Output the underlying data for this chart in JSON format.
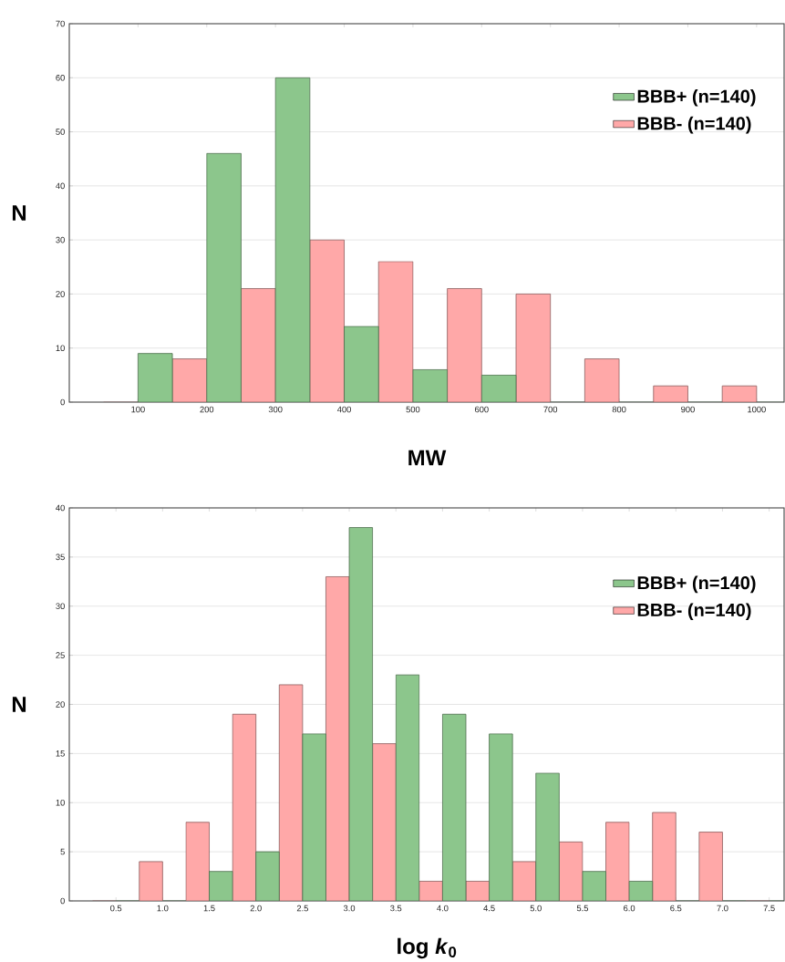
{
  "chart_data": [
    {
      "type": "bar",
      "xlabel": "MW",
      "ylabel": "N",
      "x": [
        100,
        200,
        300,
        400,
        500,
        600,
        700,
        800,
        900,
        1000
      ],
      "series": [
        {
          "name": "BBB-  (n=140)",
          "color": "#ffa8a8",
          "values": [
            0,
            8,
            21,
            30,
            26,
            21,
            20,
            8,
            3,
            3
          ]
        },
        {
          "name": "BBB+  (n=140)",
          "color": "#8cc68c",
          "values": [
            9,
            46,
            60,
            14,
            6,
            5,
            0,
            0,
            0,
            0
          ]
        }
      ],
      "xlim": [
        0,
        1040
      ],
      "ylim": [
        0,
        70
      ],
      "xticks": [
        100,
        200,
        300,
        400,
        500,
        600,
        700,
        800,
        900,
        1000
      ],
      "yticks": [
        0,
        10,
        20,
        30,
        40,
        50,
        60,
        70
      ],
      "grid": "y",
      "legend": "top right"
    },
    {
      "type": "bar",
      "xlabel": "log *k*$_{0}$",
      "ylabel": "N",
      "x": [
        0.5,
        1.0,
        1.5,
        2.0,
        2.5,
        3.0,
        3.5,
        4.0,
        4.5,
        5.0,
        5.5,
        6.0,
        6.5,
        7.0,
        7.5
      ],
      "series": [
        {
          "name": "BBB-  (n=140)",
          "color": "#ffa8a8",
          "values": [
            0,
            4,
            8,
            19,
            22,
            33,
            16,
            2,
            2,
            4,
            6,
            8,
            9,
            7,
            0
          ]
        },
        {
          "name": "BBB+  (n=140)",
          "color": "#8cc68c",
          "values": [
            0,
            0,
            3,
            5,
            17,
            38,
            23,
            19,
            17,
            13,
            3,
            2,
            0,
            0,
            0
          ]
        }
      ],
      "xlim": [
        0,
        7.66
      ],
      "ylim": [
        0,
        40
      ],
      "xticks": [
        0.5,
        {
          "value": 1,
          "label": "1.0"
        },
        1.5,
        {
          "value": 2,
          "label": "2.0"
        },
        2.5,
        {
          "value": 3,
          "label": "3.0"
        },
        3.5,
        {
          "value": 4,
          "label": "4.0"
        },
        4.5,
        {
          "value": 5,
          "label": "5.0"
        },
        5.5,
        {
          "value": 6,
          "label": "6.0"
        },
        6.5,
        {
          "value": 7,
          "label": "7.0"
        },
        7.5
      ],
      "yticks": [
        0,
        5,
        10,
        15,
        20,
        25,
        30,
        35,
        40
      ],
      "grid": "y",
      "legend": "top right"
    }
  ]
}
